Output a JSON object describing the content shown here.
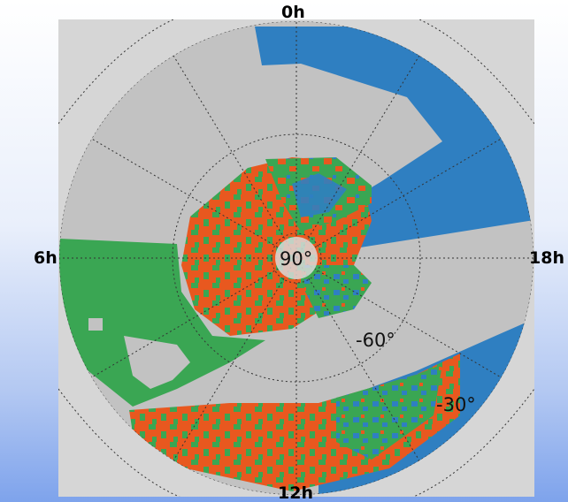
{
  "hour_labels": {
    "top": "0h",
    "left": "6h",
    "right": "18h",
    "bottom": "12h"
  },
  "declination_labels": {
    "pole": "90°",
    "mid": "-60°",
    "outer": "-30°"
  },
  "colors": {
    "frame_background": "#d6d6d6",
    "not_observable": "#c2c2c2",
    "blue_region": "#2f7fc1",
    "green_region": "#3aa653",
    "orange_region": "#e8581f",
    "grid_line": "#333333"
  },
  "icons": []
}
